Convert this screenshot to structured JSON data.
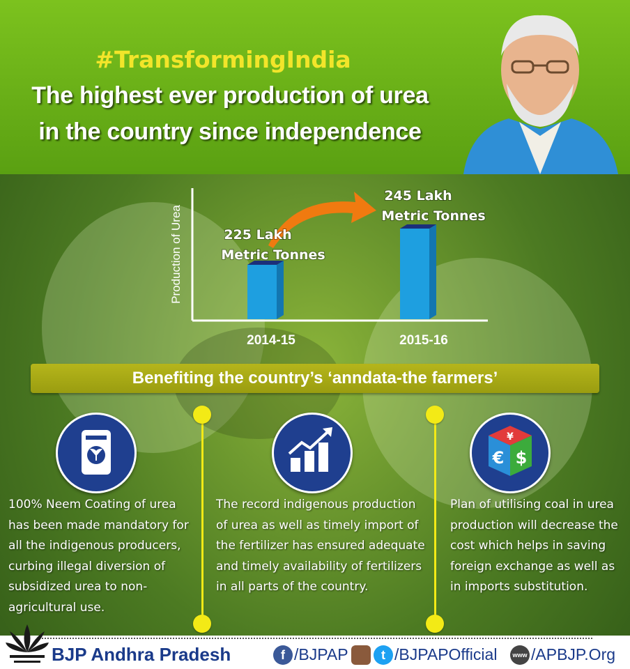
{
  "header": {
    "hashtag": "#TransformingIndia",
    "headline_line1": "The highest ever production of urea",
    "headline_line2": "in the country since independence"
  },
  "chart_data": {
    "type": "bar",
    "categories": [
      "2014-15",
      "2015-16"
    ],
    "values": [
      225,
      245
    ],
    "ylabel": "Production of Urea",
    "data_labels": [
      {
        "line1": "225 Lakh",
        "line2": "Metric Tonnes"
      },
      {
        "line1": "245 Lakh",
        "line2": "Metric Tonnes"
      }
    ],
    "bar_color": "#1e9fe0",
    "arrow_color": "#f07a10"
  },
  "banner": {
    "text": "Benefiting the country’s ‘anndata-the farmers’"
  },
  "benefits": [
    {
      "icon": "fertilizer-bag-icon",
      "text": "100% Neem Coating of urea has been made mandatory for all the indigenous producers, curbing illegal diversion of subsidized urea to non-agricultural use."
    },
    {
      "icon": "growth-chart-icon",
      "text": "The record indigenous production of urea as well as timely import of the fertilizer has ensured adequate and timely availability of fertilizers in all parts of the country."
    },
    {
      "icon": "currency-dice-icon",
      "text": "Plan of utilising coal in urea production will decrease the cost which helps in saving foreign exchange as well as in imports substitution."
    }
  ],
  "icon_glyphs": {
    "euro": "€",
    "dollar": "$",
    "yen": "¥"
  },
  "footer": {
    "brand": "BJP Andhra Pradesh",
    "facebook": "/BJPAP",
    "twitter": "/BJPAPOfficial",
    "web": "/APBJP.Org",
    "facebook_glyph": "f",
    "twitter_glyph": "t",
    "web_glyph": "www"
  },
  "colors": {
    "accent_yellow": "#f3ea16",
    "brand_blue": "#1a3a8a",
    "header_green": "#6cb41a"
  }
}
